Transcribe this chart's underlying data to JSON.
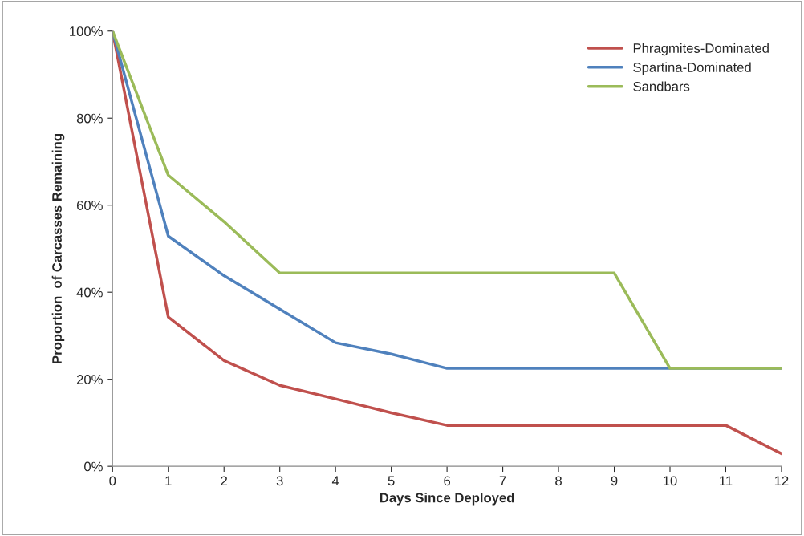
{
  "chart_data": {
    "type": "line",
    "xlabel": "Days Since Deployed",
    "ylabel": "Proportion  of Carcasses Remaining",
    "x": [
      0,
      1,
      2,
      3,
      4,
      5,
      6,
      7,
      8,
      9,
      10,
      11,
      12
    ],
    "series": [
      {
        "name": "Phragmites-Dominated",
        "color": "#c0504d",
        "values": [
          100,
          34.3,
          24.3,
          18.6,
          15.5,
          12.3,
          9.4,
          9.4,
          9.4,
          9.4,
          9.4,
          9.4,
          2.9
        ]
      },
      {
        "name": "Spartina-Dominated",
        "color": "#4f81bd",
        "values": [
          100,
          52.9,
          43.8,
          36.1,
          28.4,
          25.8,
          22.5,
          22.5,
          22.5,
          22.5,
          22.5,
          22.5,
          22.5
        ]
      },
      {
        "name": "Sandbars",
        "color": "#9bbb59",
        "values": [
          100,
          66.9,
          56.2,
          44.4,
          44.4,
          44.4,
          44.4,
          44.4,
          44.4,
          44.4,
          22.5,
          22.5,
          22.5
        ]
      }
    ],
    "xlim": [
      0,
      12
    ],
    "xticks": [
      0,
      1,
      2,
      3,
      4,
      5,
      6,
      7,
      8,
      9,
      10,
      11,
      12
    ],
    "ylim": [
      0,
      100
    ],
    "yticks": [
      {
        "value": 0,
        "label": "0%"
      },
      {
        "value": 20,
        "label": "20%"
      },
      {
        "value": 40,
        "label": "40%"
      },
      {
        "value": 60,
        "label": "60%"
      },
      {
        "value": 80,
        "label": "80%"
      },
      {
        "value": 100,
        "label": "100%"
      }
    ],
    "grid": false,
    "legend": "top right",
    "marker": "none",
    "line_style": "solid"
  }
}
